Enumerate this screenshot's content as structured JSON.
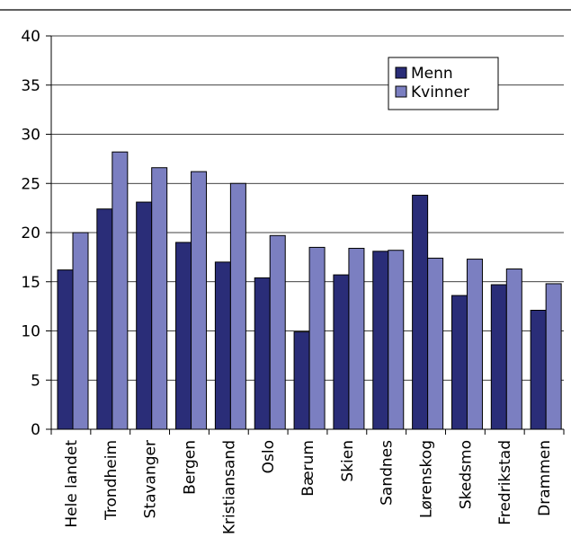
{
  "chart_data": {
    "type": "bar",
    "title": "",
    "xlabel": "",
    "ylabel": "",
    "ylim": [
      0,
      40
    ],
    "yticks": [
      "0",
      "5",
      "10",
      "15",
      "20",
      "25",
      "30",
      "35",
      "40"
    ],
    "grid": true,
    "legend_position": "top-right",
    "categories": [
      "Hele landet",
      "Trondheim",
      "Stavanger",
      "Bergen",
      "Kristiansand",
      "Oslo",
      "Bærum",
      "Skien",
      "Sandnes",
      "Lørenskog",
      "Skedsmo",
      "Fredrikstad",
      "Drammen"
    ],
    "series": [
      {
        "name": "Menn",
        "color": "#2a2d78",
        "values": [
          16.2,
          22.4,
          23.1,
          19.0,
          17.0,
          15.4,
          9.9,
          15.7,
          18.1,
          23.8,
          13.6,
          14.7,
          12.1
        ]
      },
      {
        "name": "Kvinner",
        "color": "#7b7fc1",
        "values": [
          20.0,
          28.2,
          26.6,
          26.2,
          25.0,
          19.7,
          18.5,
          18.4,
          18.2,
          17.4,
          17.3,
          16.3,
          14.8
        ]
      }
    ]
  }
}
